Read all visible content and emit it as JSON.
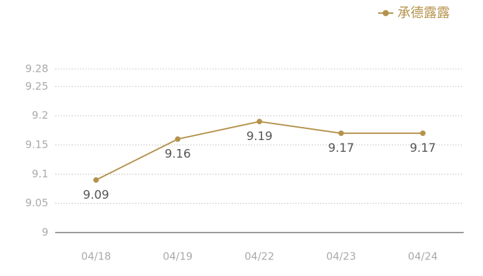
{
  "chart_data": {
    "type": "line",
    "categories": [
      "04/18",
      "04/19",
      "04/22",
      "04/23",
      "04/24"
    ],
    "series": [
      {
        "name": "承德露露",
        "color": "#b5924c",
        "values": [
          9.09,
          9.16,
          9.19,
          9.17,
          9.17
        ]
      }
    ],
    "ylim": [
      9,
      9.28
    ],
    "yticks": [
      9,
      9.05,
      9.1,
      9.15,
      9.2,
      9.25,
      9.28
    ],
    "grid": true,
    "legend": "top-right"
  }
}
